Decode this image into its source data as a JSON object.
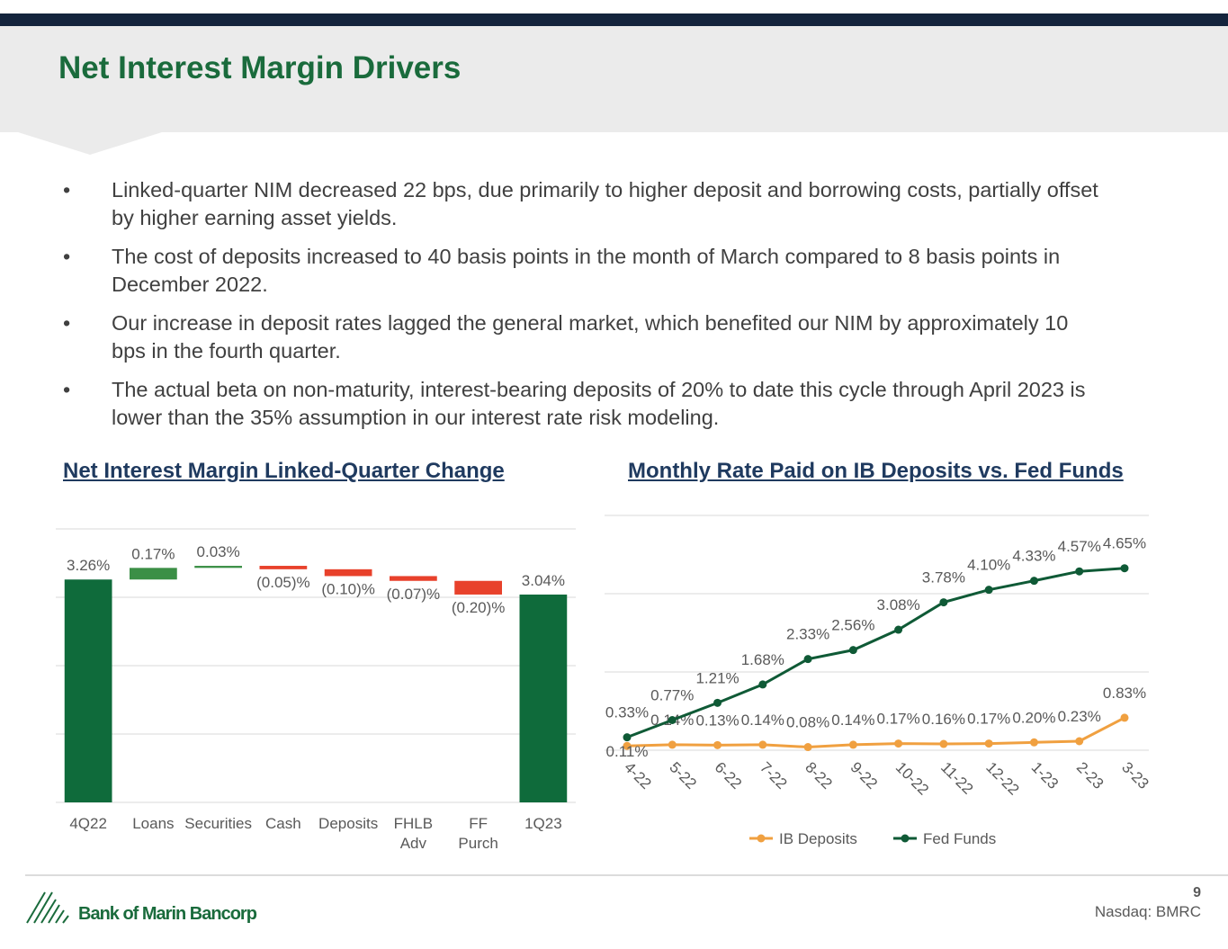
{
  "header": {
    "title": "Net Interest Margin Drivers"
  },
  "bullets": [
    "Linked-quarter NIM decreased 22 bps, due primarily to higher deposit and borrowing costs, partially offset by higher earning asset yields.",
    "The cost of deposits increased to 40 basis points in the month of March compared to 8 basis points in December 2022.",
    "Our increase in deposit rates lagged the general market, which benefited our NIM by approximately 10 bps in the fourth quarter.",
    "The actual beta on non-maturity, interest-bearing deposits of 20% to date this cycle through April 2023 is lower than the 35% assumption in our interest rate risk modeling."
  ],
  "chart_data": [
    {
      "type": "waterfall",
      "title": "Net Interest Margin Linked-Quarter Change",
      "categories": [
        "4Q22",
        "Loans",
        "Securities",
        "Cash",
        "Deposits",
        "FHLB\nAdv",
        "FF\nPurch",
        "1Q23"
      ],
      "values": [
        3.26,
        0.17,
        0.03,
        -0.05,
        -0.1,
        -0.07,
        -0.2,
        3.04
      ],
      "value_labels": [
        "3.26%",
        "0.17%",
        "0.03%",
        "(0.05)%",
        "(0.10)%",
        "(0.07)%",
        "(0.20)%",
        "3.04%"
      ],
      "ylim": [
        0,
        4
      ],
      "yticks": [
        0,
        1,
        2,
        3,
        4
      ],
      "grid": true,
      "colors": {
        "total": "#0f6b3b",
        "increase": "#3b8f46",
        "decrease": "#e8412b"
      }
    },
    {
      "type": "line",
      "title": "Monthly Rate Paid on IB Deposits vs. Fed Funds",
      "categories": [
        "4-22",
        "5-22",
        "6-22",
        "7-22",
        "8-22",
        "9-22",
        "10-22",
        "11-22",
        "12-22",
        "1-23",
        "2-23",
        "3-23"
      ],
      "series": [
        {
          "name": "IB Deposits",
          "color": "#f0a040",
          "values": [
            0.11,
            0.14,
            0.13,
            0.14,
            0.08,
            0.14,
            0.17,
            0.16,
            0.17,
            0.2,
            0.23,
            0.83
          ],
          "value_labels": [
            "0.11%",
            "0.14%",
            "0.13%",
            "0.14%",
            "0.08%",
            "0.14%",
            "0.17%",
            "0.16%",
            "0.17%",
            "0.20%",
            "0.23%",
            "0.83%"
          ]
        },
        {
          "name": "Fed Funds",
          "color": "#0f5a36",
          "values": [
            0.33,
            0.77,
            1.21,
            1.68,
            2.33,
            2.56,
            3.08,
            3.78,
            4.1,
            4.33,
            4.57,
            4.65
          ],
          "value_labels": [
            "0.33%",
            "0.77%",
            "1.21%",
            "1.68%",
            "2.33%",
            "2.56%",
            "3.08%",
            "3.78%",
            "4.10%",
            "4.33%",
            "4.57%",
            "4.65%"
          ]
        }
      ],
      "ylim": [
        0,
        6
      ],
      "yticks": [
        0,
        2,
        4,
        6
      ],
      "grid": true,
      "legend": "bottom"
    }
  ],
  "footer": {
    "logo": "Bank of Marin Bancorp",
    "page": 9,
    "ticker": "Nasdaq: BMRC"
  }
}
